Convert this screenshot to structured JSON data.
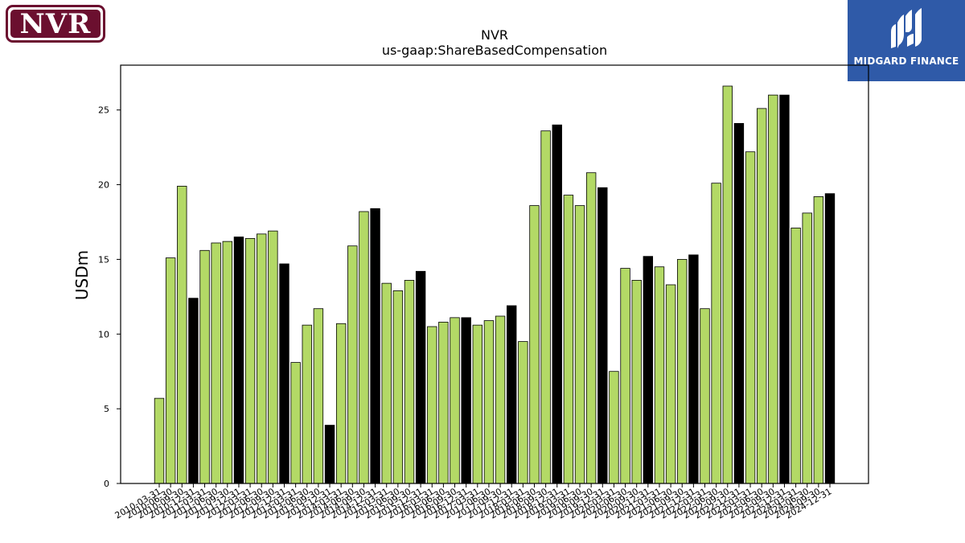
{
  "logos": {
    "left_text": "NVR",
    "right_text": "MIDGARD FINANCE"
  },
  "colors": {
    "bar_green": "#b3d966",
    "bar_black": "#000000",
    "bar_edge": "#000000"
  },
  "chart_data": {
    "type": "bar",
    "title": "NVR",
    "subtitle": "us-gaap:ShareBasedCompensation",
    "xlabel": "",
    "ylabel": "USDm",
    "ylim": [
      0,
      28
    ],
    "yticks": [
      0,
      5,
      10,
      15,
      20,
      25
    ],
    "grid": false,
    "categories": [
      "2010-03-31",
      "2010-06-30",
      "2010-09-30",
      "2010-12-31",
      "2011-03-31",
      "2011-06-30",
      "2011-09-30",
      "2011-12-31",
      "2012-03-31",
      "2012-06-30",
      "2012-09-30",
      "2012-12-31",
      "2013-03-31",
      "2013-06-30",
      "2013-09-30",
      "2013-12-31",
      "2014-03-31",
      "2014-06-30",
      "2014-09-30",
      "2014-12-31",
      "2015-03-31",
      "2015-06-30",
      "2015-09-30",
      "2015-12-31",
      "2016-03-31",
      "2016-06-30",
      "2016-09-30",
      "2016-12-31",
      "2017-03-31",
      "2017-06-30",
      "2017-09-30",
      "2017-12-31",
      "2018-03-31",
      "2018-06-30",
      "2018-09-30",
      "2018-12-31",
      "2019-03-31",
      "2019-06-30",
      "2019-09-30",
      "2019-12-31",
      "2020-03-31",
      "2020-06-30",
      "2020-09-30",
      "2020-12-31",
      "2021-03-31",
      "2021-06-30",
      "2021-09-30",
      "2021-12-31",
      "2022-03-31",
      "2022-06-30",
      "2022-09-30",
      "2022-12-31",
      "2023-03-31",
      "2023-06-30",
      "2023-09-30",
      "2023-12-31",
      "2024-03-31",
      "2024-06-30",
      "2024-09-30",
      "2024-12-31"
    ],
    "values": [
      5.7,
      15.1,
      19.9,
      12.4,
      15.6,
      16.1,
      16.2,
      16.5,
      16.4,
      16.7,
      16.9,
      14.7,
      8.1,
      10.6,
      11.7,
      3.9,
      10.7,
      15.9,
      18.2,
      18.4,
      13.4,
      12.9,
      13.6,
      14.2,
      10.5,
      10.8,
      11.1,
      11.1,
      10.6,
      10.9,
      11.2,
      11.9,
      9.5,
      18.6,
      23.6,
      24.0,
      19.3,
      18.6,
      20.8,
      19.8,
      7.5,
      14.4,
      13.6,
      15.2,
      14.5,
      13.3,
      15.0,
      15.3,
      11.7,
      20.1,
      26.6,
      24.1,
      22.2,
      25.1,
      26.0,
      26.0,
      17.1,
      18.1,
      19.2,
      19.4
    ]
  }
}
